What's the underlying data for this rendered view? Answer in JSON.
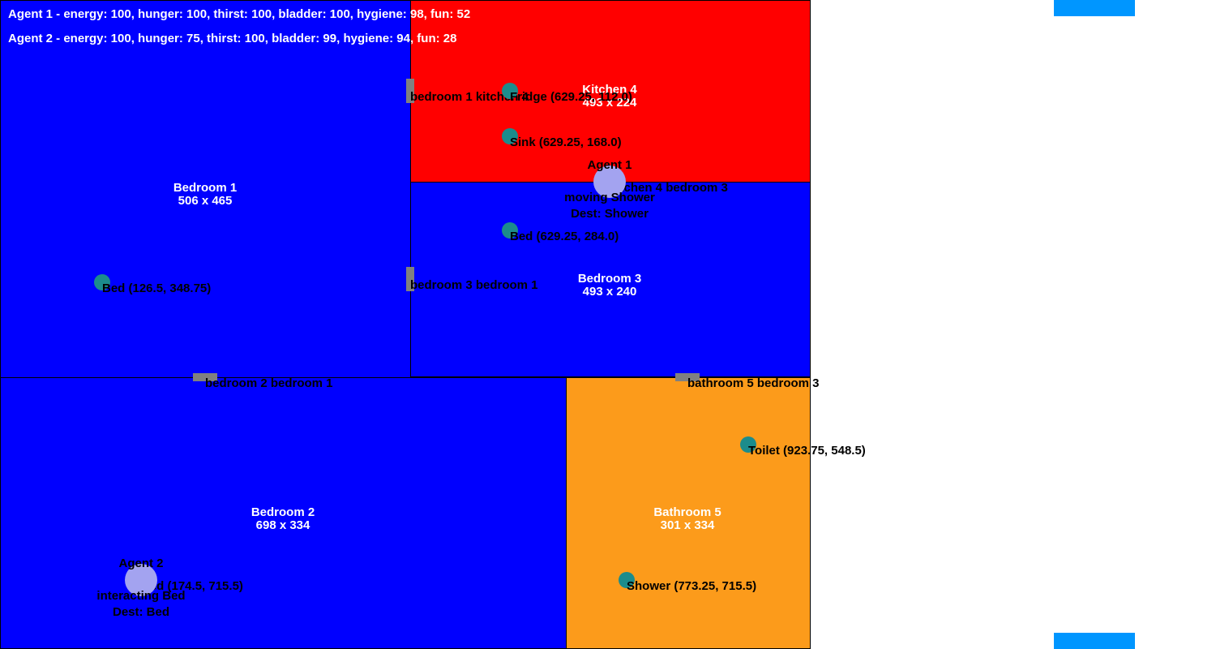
{
  "colors": {
    "bedroom": "#0000ff",
    "kitchen": "#ff0000",
    "bathroom": "#fc9b1b",
    "door": "#808080",
    "object": "#1c8c8c",
    "agent": "#a3a3f0",
    "bar": "#0096ff",
    "stats_text": "#ffffff"
  },
  "stats": [
    "Agent 1 - energy: 100, hunger: 100, thirst: 100, bladder: 100, hygiene: 98, fun: 52",
    "Agent 2 - energy: 100, hunger: 75, thirst: 100, bladder: 99, hygiene: 94, fun: 28"
  ],
  "rooms": [
    {
      "name": "Bedroom 1",
      "dims": "506 x 465",
      "type": "bedroom"
    },
    {
      "name": "Kitchen 4",
      "dims": "493 x 224",
      "type": "kitchen"
    },
    {
      "name": "Bedroom 3",
      "dims": "493 x 240",
      "type": "bedroom"
    },
    {
      "name": "Bedroom 2",
      "dims": "698 x 334",
      "type": "bedroom"
    },
    {
      "name": "Bathroom 5",
      "dims": "301 x 334",
      "type": "bathroom"
    }
  ],
  "doors": [
    "bedroom 1 kitchen 4",
    "bedroom 3 bedroom 1",
    "bedroom 2 bedroom 1",
    "kitchen 4 bedroom 3",
    "bathroom 5 bedroom 3"
  ],
  "objects": [
    {
      "label": "Fridge (629.25, 112.0)",
      "icon": "fridge-icon"
    },
    {
      "label": "Sink (629.25, 168.0)",
      "icon": "sink-icon"
    },
    {
      "label": "Bed (629.25, 284.0)",
      "icon": "bed-icon"
    },
    {
      "label": "Bed (126.5, 348.75)",
      "icon": "bed-icon"
    },
    {
      "label": "Toilet (923.75, 548.5)",
      "icon": "toilet-icon"
    },
    {
      "label": "Shower (773.25, 715.5)",
      "icon": "shower-icon"
    },
    {
      "label": "Bed (174.5, 715.5)",
      "icon": "bed-icon"
    }
  ],
  "agents": [
    {
      "name": "Agent 1",
      "status": "moving Shower",
      "dest": "Dest: Shower"
    },
    {
      "name": "Agent 2",
      "status": "interacting Bed",
      "dest": "Dest: Bed"
    }
  ]
}
